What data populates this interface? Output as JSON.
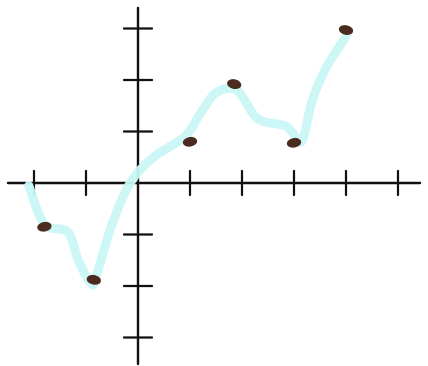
{
  "chart_data": {
    "type": "line",
    "title": "",
    "xlabel": "",
    "ylabel": "",
    "grid": false,
    "legend": "none",
    "xlim": [
      -2.2,
      5.1
    ],
    "ylim": [
      -3.5,
      3.4
    ],
    "x_ticks": [
      -2,
      -1,
      1,
      2,
      3,
      4,
      5
    ],
    "y_ticks": [
      -3,
      -2,
      -1,
      1,
      2,
      3
    ],
    "series": [
      {
        "name": "",
        "color": "#c9f7f6",
        "curve": [
          [
            -2.1,
            -0.05
          ],
          [
            -1.8,
            -0.8
          ],
          [
            -1.35,
            -0.95
          ],
          [
            -1.15,
            -1.5
          ],
          [
            -0.9,
            -1.95
          ],
          [
            -0.8,
            -1.8
          ],
          [
            -0.5,
            -0.8
          ],
          [
            -0.15,
            0.0
          ],
          [
            0.3,
            0.5
          ],
          [
            0.9,
            0.9
          ],
          [
            1.2,
            1.35
          ],
          [
            1.5,
            1.75
          ],
          [
            1.9,
            1.8
          ],
          [
            2.3,
            1.25
          ],
          [
            2.85,
            1.1
          ],
          [
            3.1,
            0.8
          ],
          [
            3.2,
            0.95
          ],
          [
            3.35,
            1.6
          ],
          [
            3.6,
            2.2
          ],
          [
            4.0,
            2.85
          ]
        ],
        "points": [
          {
            "x": -1.8,
            "y": -0.85
          },
          {
            "x": -0.85,
            "y": -1.88
          },
          {
            "x": 1.0,
            "y": 0.8
          },
          {
            "x": 1.85,
            "y": 1.92
          },
          {
            "x": 3.0,
            "y": 0.78
          },
          {
            "x": 4.0,
            "y": 2.97
          }
        ]
      }
    ],
    "marker_color": "#4b2a20",
    "axis_color": "#111111"
  }
}
